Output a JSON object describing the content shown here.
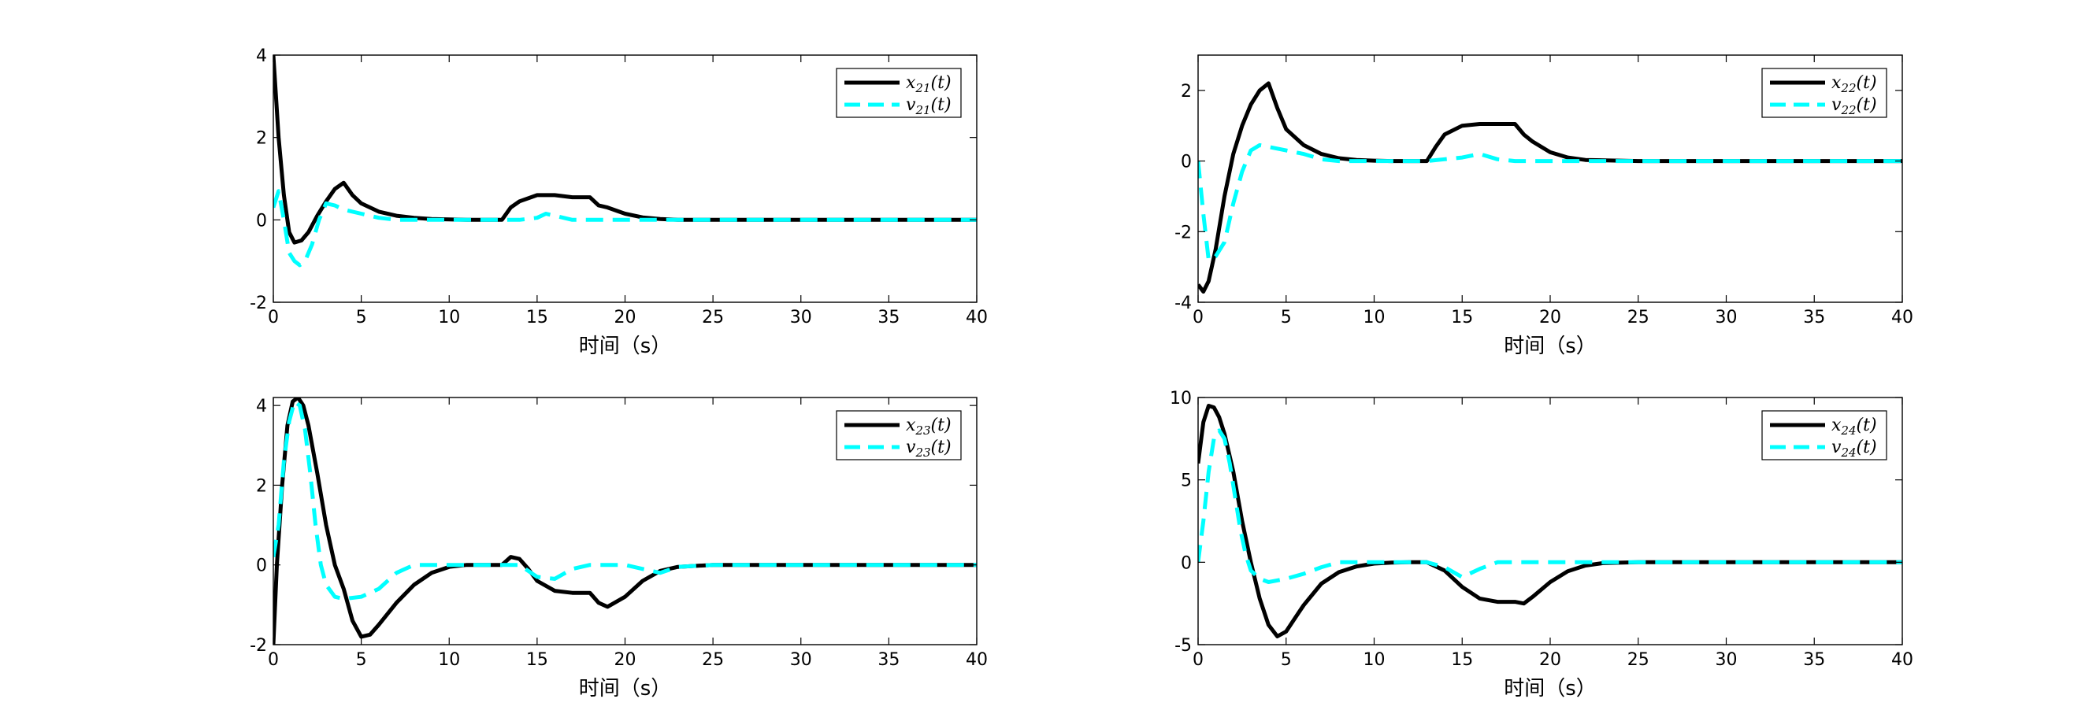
{
  "chart_data": [
    {
      "type": "line",
      "xlabel": "时间（s）",
      "xlim": [
        0,
        40
      ],
      "ylim": [
        -2,
        4
      ],
      "xticks": [
        0,
        5,
        10,
        15,
        20,
        25,
        30,
        35,
        40
      ],
      "yticks": [
        -2,
        0,
        2,
        4
      ],
      "legend_position": "top-right",
      "series": [
        {
          "name": "x21(t)",
          "legend_main": "x",
          "legend_sub": "21",
          "legend_tail": "(t)",
          "color": "#000000",
          "style": "solid",
          "x": [
            0,
            0.3,
            0.6,
            0.9,
            1.2,
            1.6,
            2,
            2.5,
            3,
            3.5,
            4,
            4.5,
            5,
            6,
            7,
            8,
            9,
            10,
            11,
            12,
            13,
            13.5,
            14,
            15,
            16,
            17,
            18,
            18.5,
            19,
            20,
            21,
            22,
            23,
            25,
            30,
            35,
            40
          ],
          "y": [
            4.0,
            2.0,
            0.6,
            -0.3,
            -0.55,
            -0.5,
            -0.3,
            0.1,
            0.45,
            0.75,
            0.9,
            0.6,
            0.4,
            0.2,
            0.1,
            0.05,
            0.02,
            0.01,
            0.0,
            0.0,
            0.0,
            0.3,
            0.45,
            0.6,
            0.6,
            0.55,
            0.55,
            0.35,
            0.3,
            0.15,
            0.06,
            0.02,
            0.0,
            0.0,
            0.0,
            0.0,
            0.0
          ]
        },
        {
          "name": "v21(t)",
          "legend_main": "v",
          "legend_sub": "21",
          "legend_tail": "(t)",
          "color": "#00FFFF",
          "style": "dashed",
          "x": [
            0,
            0.3,
            0.6,
            0.9,
            1.2,
            1.5,
            1.8,
            2.2,
            2.6,
            3,
            3.5,
            4,
            5,
            6,
            7,
            8,
            10,
            12,
            13,
            14,
            15,
            15.5,
            16,
            17,
            18,
            19,
            20,
            22,
            25,
            30,
            35,
            40
          ],
          "y": [
            0.3,
            0.7,
            0.0,
            -0.8,
            -1.0,
            -1.1,
            -1.0,
            -0.6,
            0.0,
            0.4,
            0.35,
            0.25,
            0.15,
            0.05,
            0.0,
            0.0,
            0.0,
            0.0,
            0.0,
            0.0,
            0.05,
            0.15,
            0.1,
            0.0,
            0.0,
            0.0,
            0.0,
            0.0,
            0.0,
            0.0,
            0.0,
            0.0
          ]
        }
      ]
    },
    {
      "type": "line",
      "xlabel": "时间（s）",
      "xlim": [
        0,
        40
      ],
      "ylim": [
        -4,
        3
      ],
      "xticks": [
        0,
        5,
        10,
        15,
        20,
        25,
        30,
        35,
        40
      ],
      "yticks": [
        -4,
        -2,
        0,
        2
      ],
      "legend_position": "top-right",
      "series": [
        {
          "name": "x22(t)",
          "legend_main": "x",
          "legend_sub": "22",
          "legend_tail": "(t)",
          "color": "#000000",
          "style": "solid",
          "x": [
            0,
            0.3,
            0.6,
            1,
            1.5,
            2,
            2.5,
            3,
            3.5,
            4,
            4.5,
            5,
            6,
            7,
            8,
            9,
            10,
            11,
            12,
            13,
            13.5,
            14,
            15,
            16,
            17,
            18,
            18.5,
            19,
            20,
            21,
            22,
            25,
            30,
            35,
            40
          ],
          "y": [
            -3.5,
            -3.7,
            -3.4,
            -2.5,
            -1.0,
            0.2,
            1.0,
            1.6,
            2.0,
            2.2,
            1.5,
            0.9,
            0.45,
            0.2,
            0.08,
            0.03,
            0.01,
            0.0,
            0.0,
            0.0,
            0.4,
            0.75,
            1.0,
            1.05,
            1.05,
            1.05,
            0.75,
            0.55,
            0.25,
            0.1,
            0.03,
            0.0,
            0.0,
            0.0,
            0.0
          ]
        },
        {
          "name": "v22(t)",
          "legend_main": "v",
          "legend_sub": "22",
          "legend_tail": "(t)",
          "color": "#00FFFF",
          "style": "dashed",
          "x": [
            0,
            0.3,
            0.6,
            1,
            1.5,
            2,
            2.5,
            3,
            3.5,
            4,
            5,
            6,
            7,
            8,
            10,
            12,
            13,
            14,
            15,
            16,
            17,
            18,
            20,
            22,
            25,
            30,
            35,
            40
          ],
          "y": [
            0.0,
            -1.5,
            -2.8,
            -2.7,
            -2.3,
            -1.2,
            -0.3,
            0.3,
            0.45,
            0.4,
            0.3,
            0.2,
            0.05,
            0.0,
            0.0,
            0.0,
            0.0,
            0.05,
            0.1,
            0.2,
            0.05,
            0.0,
            0.0,
            0.0,
            0.0,
            0.0,
            0.0,
            0.0
          ]
        }
      ]
    },
    {
      "type": "line",
      "xlabel": "时间（s）",
      "xlim": [
        0,
        40
      ],
      "ylim": [
        -2,
        4.2
      ],
      "xticks": [
        0,
        5,
        10,
        15,
        20,
        25,
        30,
        35,
        40
      ],
      "yticks": [
        -2,
        0,
        2,
        4
      ],
      "legend_position": "top-right",
      "series": [
        {
          "name": "x23(t)",
          "legend_main": "x",
          "legend_sub": "23",
          "legend_tail": "(t)",
          "color": "#000000",
          "style": "solid",
          "x": [
            0,
            0.2,
            0.5,
            0.8,
            1.1,
            1.4,
            1.7,
            2,
            2.5,
            3,
            3.5,
            4,
            4.5,
            5,
            5.5,
            6,
            7,
            8,
            9,
            10,
            11,
            12,
            13,
            13.5,
            14,
            14.5,
            15,
            16,
            17,
            18,
            18.5,
            19,
            20,
            21,
            22,
            23,
            25,
            30,
            35,
            40
          ],
          "y": [
            -2.0,
            0.0,
            2.0,
            3.5,
            4.1,
            4.2,
            4.0,
            3.5,
            2.3,
            1.0,
            0.0,
            -0.6,
            -1.4,
            -1.8,
            -1.75,
            -1.5,
            -0.95,
            -0.5,
            -0.2,
            -0.05,
            0.0,
            0.0,
            0.0,
            0.2,
            0.15,
            -0.1,
            -0.4,
            -0.65,
            -0.7,
            -0.7,
            -0.95,
            -1.05,
            -0.8,
            -0.4,
            -0.15,
            -0.05,
            0.0,
            0.0,
            0.0,
            0.0
          ]
        },
        {
          "name": "v23(t)",
          "legend_main": "v",
          "legend_sub": "23",
          "legend_tail": "(t)",
          "color": "#00FFFF",
          "style": "dashed",
          "x": [
            0,
            0.3,
            0.6,
            0.9,
            1.2,
            1.5,
            1.8,
            2.1,
            2.4,
            2.7,
            3,
            3.5,
            4,
            5,
            6,
            7,
            8,
            9,
            10,
            12,
            13,
            14,
            15,
            16,
            17,
            18,
            19,
            20,
            21,
            22,
            23,
            25,
            30,
            35,
            40
          ],
          "y": [
            0.2,
            1.0,
            2.6,
            3.6,
            4.1,
            4.0,
            3.4,
            2.3,
            1.0,
            0.0,
            -0.5,
            -0.8,
            -0.85,
            -0.8,
            -0.6,
            -0.2,
            0.0,
            0.0,
            0.0,
            0.0,
            0.0,
            0.0,
            -0.3,
            -0.35,
            -0.1,
            0.0,
            0.0,
            0.0,
            -0.1,
            -0.2,
            -0.05,
            0.0,
            0.0,
            0.0,
            0.0
          ]
        }
      ]
    },
    {
      "type": "line",
      "xlabel": "时间（s）",
      "xlim": [
        0,
        40
      ],
      "ylim": [
        -5,
        10
      ],
      "xticks": [
        0,
        5,
        10,
        15,
        20,
        25,
        30,
        35,
        40
      ],
      "yticks": [
        -5,
        0,
        5,
        10
      ],
      "legend_position": "top-right",
      "series": [
        {
          "name": "x24(t)",
          "legend_main": "x",
          "legend_sub": "24",
          "legend_tail": "(t)",
          "color": "#000000",
          "style": "solid",
          "x": [
            0,
            0.3,
            0.6,
            0.9,
            1.2,
            1.5,
            2,
            2.5,
            3,
            3.5,
            4,
            4.5,
            5,
            5.5,
            6,
            7,
            8,
            9,
            10,
            11,
            12,
            13,
            14,
            15,
            16,
            17,
            18,
            18.5,
            19,
            20,
            21,
            22,
            23,
            25,
            30,
            35,
            40
          ],
          "y": [
            6.0,
            8.5,
            9.5,
            9.4,
            8.8,
            7.8,
            5.5,
            2.5,
            0.0,
            -2.2,
            -3.8,
            -4.5,
            -4.2,
            -3.4,
            -2.6,
            -1.3,
            -0.6,
            -0.25,
            -0.08,
            -0.02,
            0.0,
            0.0,
            -0.5,
            -1.5,
            -2.2,
            -2.4,
            -2.4,
            -2.5,
            -2.1,
            -1.2,
            -0.55,
            -0.2,
            -0.05,
            0.0,
            0.0,
            0.0,
            0.0
          ]
        },
        {
          "name": "v24(t)",
          "legend_main": "v",
          "legend_sub": "24",
          "legend_tail": "(t)",
          "color": "#00FFFF",
          "style": "dashed",
          "x": [
            0,
            0.3,
            0.6,
            0.9,
            1.2,
            1.5,
            1.8,
            2.1,
            2.4,
            2.7,
            3,
            3.5,
            4,
            5,
            6,
            7,
            8,
            10,
            12,
            13,
            14,
            15,
            16,
            17,
            18,
            20,
            22,
            25,
            30,
            35,
            40
          ],
          "y": [
            0.0,
            2.5,
            5.5,
            7.5,
            8.0,
            7.5,
            6.0,
            4.0,
            2.0,
            0.5,
            -0.5,
            -1.0,
            -1.2,
            -1.0,
            -0.7,
            -0.3,
            0.0,
            0.0,
            0.0,
            0.0,
            -0.3,
            -0.9,
            -0.4,
            0.0,
            0.0,
            0.0,
            0.0,
            0.0,
            0.0,
            0.0,
            0.0
          ]
        }
      ]
    }
  ]
}
